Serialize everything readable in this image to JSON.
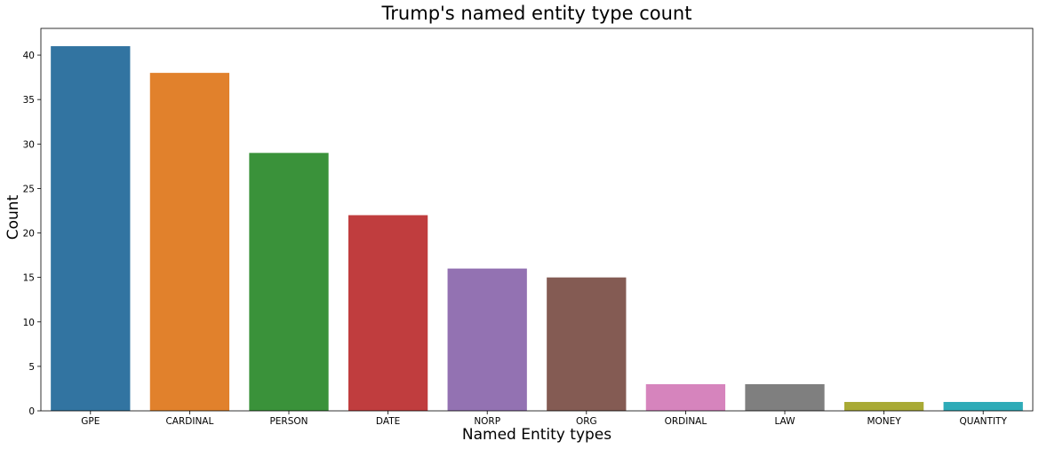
{
  "chart_data": {
    "type": "bar",
    "title": "Trump's named entity type count",
    "xlabel": "Named Entity types",
    "ylabel": "Count",
    "categories": [
      "GPE",
      "CARDINAL",
      "PERSON",
      "DATE",
      "NORP",
      "ORG",
      "ORDINAL",
      "LAW",
      "MONEY",
      "QUANTITY"
    ],
    "values": [
      41,
      38,
      29,
      22,
      16,
      15,
      3,
      3,
      1,
      1
    ],
    "colors": [
      "#3274a1",
      "#e1812c",
      "#3a923a",
      "#c03d3e",
      "#9372b2",
      "#845b53",
      "#d684bd",
      "#7f7f7f",
      "#a9aa35",
      "#2eabb8"
    ],
    "ylim": [
      0,
      43
    ],
    "yticks": [
      0,
      5,
      10,
      15,
      20,
      25,
      30,
      35,
      40
    ],
    "grid": false,
    "legend": "none"
  }
}
